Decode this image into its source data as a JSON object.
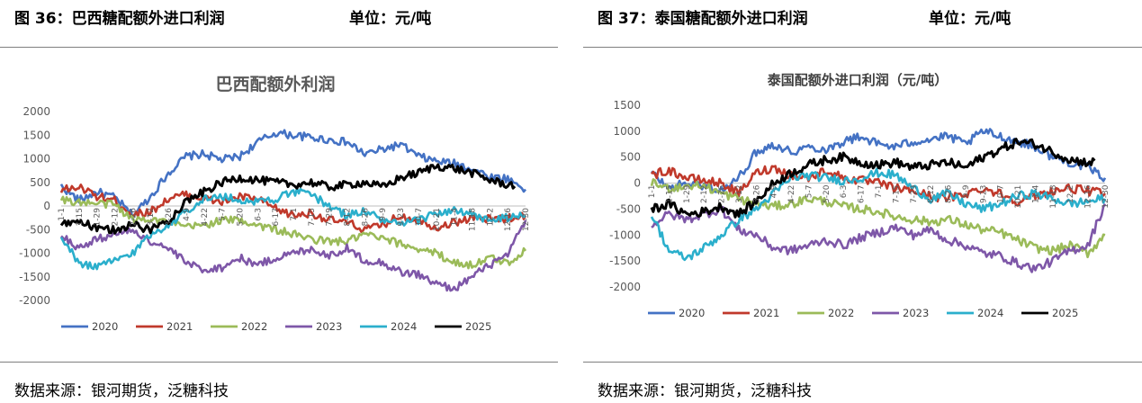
{
  "colors": {
    "2020": "#4472C4",
    "2021": "#C0392B",
    "2022": "#9BBB59",
    "2023": "#7E57A8",
    "2024": "#2BAFCC",
    "2025": "#000000"
  },
  "figures": [
    {
      "header": "图 36：巴西糖配额外进口利润",
      "unit": "单位：元/吨",
      "source": "数据来源：银河期货，泛糖科技",
      "chart_data": {
        "type": "line",
        "title": "巴西配额外利润",
        "ylim": [
          -2000,
          2000
        ],
        "yticks": [
          -2000,
          -1500,
          -1000,
          -500,
          0,
          500,
          1000,
          1500,
          2000
        ],
        "x_tick_labels": [
          "1-1",
          "1-15",
          "1-29",
          "2-12",
          "2-26",
          "3-12",
          "3-26",
          "4-9",
          "4-22",
          "5-7",
          "5-20",
          "6-3",
          "6-17",
          "7-1",
          "7-15",
          "7-29",
          "8-12",
          "8-26",
          "9-9",
          "9-23",
          "10-7",
          "10-21",
          "11-4",
          "11-18",
          "12-2",
          "12-16",
          "12-30"
        ],
        "legend": [
          "2020",
          "2021",
          "2022",
          "2023",
          "2024",
          "2025"
        ],
        "series": [
          {
            "name": "2020",
            "values": [
              420,
              120,
              300,
              180,
              -200,
              200,
              700,
              1050,
              1100,
              980,
              1050,
              1350,
              1550,
              1500,
              1450,
              1400,
              1350,
              1100,
              1200,
              1300,
              1050,
              950,
              900,
              800,
              620,
              580,
              350
            ]
          },
          {
            "name": "2021",
            "values": [
              330,
              400,
              200,
              120,
              -180,
              -120,
              150,
              250,
              160,
              80,
              200,
              140,
              -60,
              -200,
              -150,
              -300,
              -350,
              -500,
              -400,
              -200,
              -300,
              -450,
              -350,
              -250,
              -280,
              -260,
              -200
            ]
          },
          {
            "name": "2022",
            "values": [
              130,
              80,
              50,
              40,
              -300,
              -250,
              -350,
              -450,
              -400,
              -300,
              -300,
              -400,
              -500,
              -600,
              -700,
              -750,
              -750,
              -600,
              -700,
              -800,
              -900,
              -1000,
              -1200,
              -1250,
              -1100,
              -1200,
              -950
            ]
          },
          {
            "name": "2023",
            "values": [
              -600,
              -900,
              -700,
              -600,
              -500,
              -750,
              -900,
              -1200,
              -1350,
              -1300,
              -1100,
              -1250,
              -1100,
              -1000,
              -900,
              -1050,
              -900,
              -1150,
              -1200,
              -1400,
              -1450,
              -1650,
              -1750,
              -1500,
              -1250,
              -1050,
              -300
            ]
          },
          {
            "name": "2024",
            "values": [
              -700,
              -1200,
              -1300,
              -1150,
              -1000,
              -600,
              -400,
              -100,
              150,
              200,
              120,
              100,
              150,
              300,
              250,
              0,
              -200,
              -100,
              -300,
              -400,
              -300,
              -150,
              -100,
              -200,
              -300,
              -250,
              -200
            ]
          },
          {
            "name": "2025",
            "values": [
              -400,
              -300,
              -500,
              -500,
              -400,
              -500,
              -300,
              100,
              300,
              500,
              600,
              550,
              500,
              450,
              500,
              400,
              450,
              500,
              400,
              600,
              700,
              850,
              800,
              700,
              550,
              450,
              null
            ]
          }
        ]
      }
    },
    {
      "header": "图 37：泰国糖配额外进口利润",
      "unit": "单位：元/吨",
      "source": "数据来源：银河期货，泛糖科技",
      "chart_data": {
        "type": "line",
        "title": "泰国配额外进口利润（元/吨）",
        "ylim": [
          -2000,
          1500
        ],
        "yticks": [
          -2000,
          -1500,
          -1000,
          -500,
          0,
          500,
          1000,
          1500
        ],
        "x_tick_labels": [
          "1-1",
          "1-15",
          "1-29",
          "2-12",
          "2-26",
          "3-12",
          "3-26",
          "4-9",
          "4-22",
          "5-7",
          "5-20",
          "6-3",
          "6-17",
          "7-1",
          "7-15",
          "7-29",
          "8-12",
          "8-26",
          "9-9",
          "9-23",
          "10-7",
          "10-21",
          "11-4",
          "11-18",
          "12-2",
          "12-16",
          "12-30"
        ],
        "legend": [
          "2020",
          "2021",
          "2022",
          "2023",
          "2024",
          "2025"
        ],
        "series": [
          {
            "name": "2020",
            "values": [
              200,
              -100,
              0,
              -50,
              -150,
              100,
              600,
              750,
              600,
              700,
              650,
              800,
              900,
              750,
              700,
              800,
              850,
              900,
              750,
              1000,
              900,
              800,
              700,
              500,
              400,
              300,
              100
            ]
          },
          {
            "name": "2021",
            "values": [
              150,
              250,
              100,
              50,
              0,
              -200,
              200,
              300,
              150,
              100,
              250,
              100,
              50,
              0,
              -100,
              -150,
              -250,
              -300,
              -200,
              -100,
              -200,
              -350,
              -250,
              -150,
              -100,
              -150,
              -200
            ]
          },
          {
            "name": "2022",
            "values": [
              0,
              -100,
              -50,
              -50,
              -200,
              -300,
              -400,
              -450,
              -400,
              -300,
              -350,
              -450,
              -500,
              -550,
              -650,
              -700,
              -750,
              -700,
              -800,
              -900,
              -950,
              -1100,
              -1250,
              -1300,
              -1200,
              -1350,
              -1000
            ]
          },
          {
            "name": "2023",
            "values": [
              -800,
              -600,
              -700,
              -600,
              -500,
              -900,
              -1000,
              -1250,
              -1300,
              -1200,
              -1100,
              -1200,
              -1050,
              -950,
              -850,
              -1000,
              -900,
              -1100,
              -1200,
              -1350,
              -1400,
              -1550,
              -1650,
              -1500,
              -1300,
              -1200,
              -400
            ]
          },
          {
            "name": "2024",
            "values": [
              -600,
              -1300,
              -1450,
              -1250,
              -1000,
              -700,
              -500,
              -200,
              100,
              150,
              100,
              50,
              100,
              200,
              150,
              -100,
              -300,
              -200,
              -400,
              -500,
              -400,
              -250,
              -200,
              -300,
              -400,
              -350,
              -300
            ]
          },
          {
            "name": "2025",
            "values": [
              -500,
              -400,
              -600,
              -550,
              -450,
              -600,
              -350,
              0,
              200,
              350,
              450,
              500,
              400,
              350,
              400,
              300,
              350,
              400,
              300,
              500,
              650,
              800,
              750,
              600,
              450,
              400,
              null
            ]
          }
        ]
      }
    }
  ]
}
